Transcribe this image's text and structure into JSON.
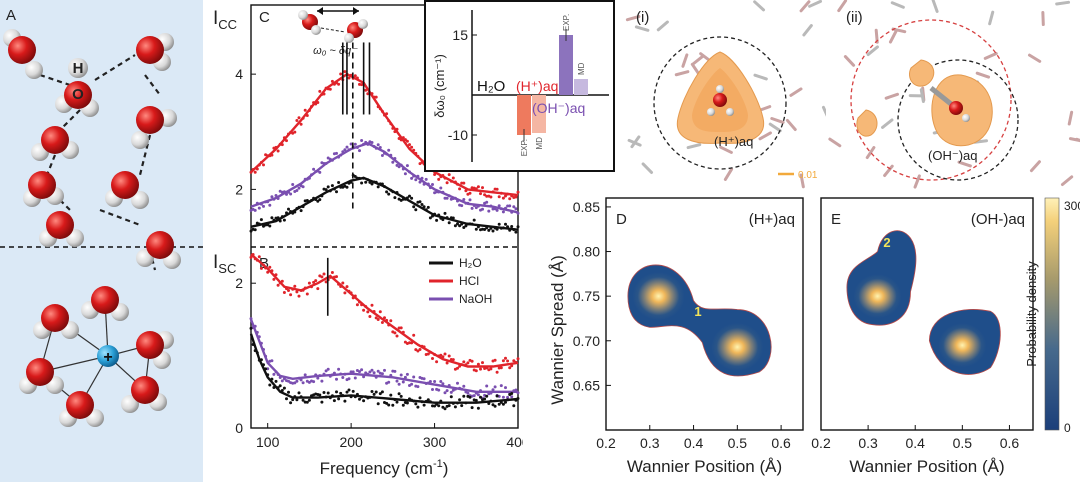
{
  "panel_a": {
    "letter": "A",
    "atom_h": "H",
    "atom_o": "O",
    "ion_symbol": "+"
  },
  "panel_bc": {
    "letter_c": "C",
    "letter_b": "B",
    "ylabel_top_main": "I",
    "ylabel_top_sub": "CC",
    "ylabel_bot_main": "I",
    "ylabel_bot_sub": "SC",
    "cartoon_label": "ω₀ ~ δq⁻",
    "xlabel": "Frequency (cm",
    "xlabel_sup": "-1",
    "xlabel_close": ")",
    "colors": {
      "h2o": "#111111",
      "hcl": "#e0242b",
      "naoh": "#7a4fb0"
    }
  },
  "chart_data": [
    {
      "type": "line",
      "panel": "C",
      "ylabel": "ICC",
      "xlim": [
        80,
        400
      ],
      "ylim": [
        1.0,
        5.2
      ],
      "yticks": [
        2,
        4
      ],
      "series": [
        {
          "name": "HCl",
          "color": "#e0242b",
          "x": [
            80,
            110,
            140,
            170,
            195,
            215,
            240,
            270,
            300,
            340,
            370,
            400
          ],
          "y": [
            2.3,
            2.7,
            3.2,
            3.75,
            4.0,
            3.85,
            3.3,
            2.7,
            2.3,
            2.0,
            1.95,
            1.9
          ]
        },
        {
          "name": "NaOH",
          "color": "#7a4fb0",
          "x": [
            80,
            110,
            140,
            170,
            200,
            220,
            240,
            270,
            300,
            340,
            370,
            400
          ],
          "y": [
            1.7,
            1.85,
            2.1,
            2.45,
            2.7,
            2.8,
            2.65,
            2.3,
            2.0,
            1.75,
            1.7,
            1.6
          ]
        },
        {
          "name": "H2O",
          "color": "#111111",
          "x": [
            80,
            110,
            140,
            170,
            200,
            215,
            240,
            270,
            300,
            340,
            370,
            400
          ],
          "y": [
            1.35,
            1.45,
            1.7,
            1.95,
            2.15,
            2.2,
            2.05,
            1.8,
            1.55,
            1.4,
            1.35,
            1.3
          ]
        }
      ],
      "markers": [
        190,
        195,
        202,
        215,
        222
      ]
    },
    {
      "type": "line",
      "panel": "B",
      "ylabel": "ISC",
      "xlim": [
        80,
        400
      ],
      "ylim": [
        0,
        2.5
      ],
      "xticks": [
        100,
        200,
        300,
        400
      ],
      "yticks": [
        0,
        2
      ],
      "series": [
        {
          "name": "HCl",
          "color": "#e0242b",
          "x": [
            80,
            100,
            120,
            140,
            160,
            175,
            195,
            220,
            250,
            280,
            310,
            340,
            370,
            400
          ],
          "y": [
            2.4,
            2.2,
            1.95,
            1.9,
            2.0,
            2.1,
            1.9,
            1.65,
            1.4,
            1.15,
            0.95,
            0.85,
            0.85,
            0.9
          ]
        },
        {
          "name": "NaOH",
          "color": "#7a4fb0",
          "x": [
            80,
            90,
            100,
            115,
            130,
            160,
            200,
            250,
            300,
            350,
            400
          ],
          "y": [
            1.5,
            1.2,
            0.9,
            0.72,
            0.68,
            0.72,
            0.75,
            0.7,
            0.6,
            0.5,
            0.5
          ]
        },
        {
          "name": "H2O",
          "color": "#111111",
          "x": [
            80,
            90,
            100,
            115,
            130,
            160,
            200,
            250,
            300,
            350,
            400
          ],
          "y": [
            1.3,
            0.95,
            0.7,
            0.5,
            0.42,
            0.42,
            0.45,
            0.4,
            0.35,
            0.35,
            0.4
          ]
        }
      ],
      "markers": [
        172
      ],
      "legend": [
        "H2O",
        "HCl",
        "NaOH"
      ]
    },
    {
      "type": "bar",
      "panel": "C-inset",
      "ylabel": "δω₀ (cm⁻¹)",
      "ylim": [
        -15,
        20
      ],
      "yticks": [
        -10,
        15
      ],
      "labels": {
        "h2o": "H₂O",
        "h": "(H⁺)aq",
        "oh": "(OH⁻)aq",
        "exp": "EXP.",
        "md": "MD"
      },
      "bars": [
        {
          "group": "(H+)aq",
          "kind": "EXP.",
          "value": -10,
          "color": "#ee7a5e"
        },
        {
          "group": "(H+)aq",
          "kind": "MD",
          "value": -9.5,
          "color": "#f5b6a3"
        },
        {
          "group": "(OH-)aq",
          "kind": "EXP.",
          "value": 15,
          "color": "#8c73bd"
        },
        {
          "group": "(OH-)aq",
          "kind": "MD",
          "value": 4,
          "color": "#c6b9df"
        }
      ]
    },
    {
      "type": "heatmap",
      "panel": "D",
      "title": "(H+)aq",
      "xlabel": "Wannier Position (Å)",
      "ylabel": "Wannier Spread (Å)",
      "xlim": [
        0.2,
        0.65
      ],
      "ylim": [
        0.6,
        0.86
      ],
      "xticks": [
        0.2,
        0.3,
        0.4,
        0.5,
        0.6
      ],
      "yticks": [
        0.65,
        0.7,
        0.75,
        0.8,
        0.85
      ],
      "peaks": [
        {
          "x": 0.32,
          "y": 0.75
        },
        {
          "x": 0.5,
          "y": 0.693
        }
      ],
      "annotation": {
        "text": "1",
        "x": 0.41,
        "y": 0.728
      }
    },
    {
      "type": "heatmap",
      "panel": "E",
      "title": "(OH-)aq",
      "xlabel": "Wannier Position (Å)",
      "xlim": [
        0.2,
        0.65
      ],
      "ylim": [
        0.6,
        0.86
      ],
      "xticks": [
        0.2,
        0.3,
        0.4,
        0.5,
        0.6
      ],
      "peaks": [
        {
          "x": 0.32,
          "y": 0.75
        },
        {
          "x": 0.5,
          "y": 0.695
        }
      ],
      "annotation": {
        "text": "2",
        "x": 0.34,
        "y": 0.805
      },
      "colorbar": {
        "label": "Probability density",
        "range": [
          0,
          300
        ],
        "ticks": [
          0,
          300
        ]
      }
    }
  ],
  "panel_i": {
    "label": "(i)",
    "ion": "(H⁺)aq",
    "scale": "0.01"
  },
  "panel_ii": {
    "label": "(ii)",
    "ion": "(OH⁻)aq"
  }
}
